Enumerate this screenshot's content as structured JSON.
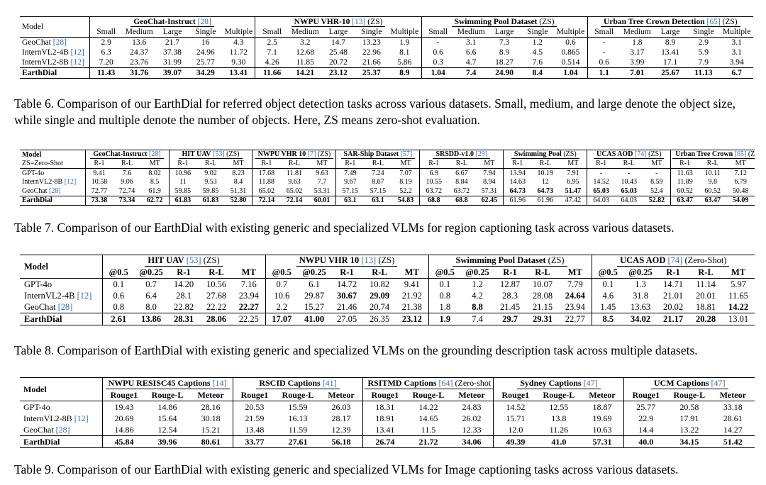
{
  "t6": {
    "model_header": "Model",
    "groups": [
      {
        "name": "GeoChat-Instruct",
        "cite": "[28]",
        "suffix": ""
      },
      {
        "name": "NWPU VHR-10",
        "cite": "[13]",
        "suffix": " (ZS)"
      },
      {
        "name": "Swimming Pool Dataset",
        "cite": "",
        "suffix": " (ZS)"
      },
      {
        "name": "Urban Tree Crown Detection",
        "cite": "[65]",
        "suffix": " (ZS)"
      }
    ],
    "sub": [
      "Small",
      "Medium",
      "Large",
      "Single",
      "Multiple"
    ],
    "rows": [
      {
        "model": "GeoChat ",
        "cite": "[28]",
        "vals": [
          "2.9",
          "13.6",
          "21.7",
          "16",
          "4.3",
          "2.5",
          "3.2",
          "14.7",
          "13.23",
          "1.9",
          "-",
          "3.1",
          "7.3",
          "1.2",
          "0.6",
          "-",
          "1.8",
          "8.9",
          "2.9",
          "3.1"
        ]
      },
      {
        "model": "InternVL2-4B ",
        "cite": "[12]",
        "vals": [
          "6.3",
          "24.37",
          "37.38",
          "24.96",
          "11.72",
          "7.1",
          "12.68",
          "25.48",
          "22.96",
          "8.1",
          "0.6",
          "6.6",
          "8.9",
          "4.5",
          "0.865",
          "-",
          "3.17",
          "13.41",
          "5.9",
          "3.1"
        ]
      },
      {
        "model": "InternVL2-8B ",
        "cite": "[12]",
        "vals": [
          "7.20",
          "23.76",
          "31.99",
          "25.77",
          "9.30",
          "4.26",
          "11.85",
          "20.72",
          "21.66",
          "5.86",
          "0.3",
          "4.7",
          "18.27",
          "7.6",
          "0.514",
          "0.6",
          "3.99",
          "17.1",
          "7.9",
          "3.94"
        ]
      }
    ],
    "final": {
      "model": "EarthDial",
      "vals": [
        "11.43",
        "31.76",
        "39.07",
        "34.29",
        "13.41",
        "11.66",
        "14.21",
        "23.12",
        "25.37",
        "8.9",
        "1.04",
        "7.4",
        "24.90",
        "8.4",
        "1.04",
        "1.1",
        "7.01",
        "25.67",
        "11.13",
        "6.7"
      ]
    },
    "caption": {
      "pre": "Table 6. ",
      "text": "Comparison of our EarthDial for referred object detection tasks across various datasets. Small, medium, and large denote the object size, while single and multiple denote the number of objects. Here, ZS means zero-shot evaluation."
    }
  },
  "t7": {
    "model_header": "Model",
    "zs_note": "ZS=Zero-Shot",
    "groups": [
      {
        "name": "GeoChat-Instruct",
        "cite": "[28]",
        "suffix": ""
      },
      {
        "name": "HIT UAV",
        "cite": "[53]",
        "suffix": " (ZS)"
      },
      {
        "name": "NWPU VHR 10",
        "cite": "[7]",
        "suffix": " (ZS)"
      },
      {
        "name": "SAR-Ship Dataset",
        "cite": "[57]",
        "suffix": ""
      },
      {
        "name": "SRSDD-v1.0",
        "cite": "[29]",
        "suffix": ""
      },
      {
        "name": "Swimming Pool",
        "cite": "",
        "suffix": " (ZS)"
      },
      {
        "name": "UCAS AOD",
        "cite": "[74]",
        "suffix": " (ZS)"
      },
      {
        "name": "Urban Tree Crown",
        "cite": "[65]",
        "suffix": " (ZS)"
      }
    ],
    "sub": [
      "R-1",
      "R-L",
      "MT"
    ],
    "rows": [
      {
        "model": "GPT-4o",
        "cite": "",
        "vals": [
          "9.41",
          "7.6",
          "8.02",
          "10.96",
          "9.02",
          "8.23",
          "17.68",
          "11.81",
          "9.63",
          "7.49",
          "7.24",
          "7.07",
          "6.9",
          "6.67",
          "7.94",
          "13.94",
          "10.19",
          "7.91",
          "-",
          "-",
          "-",
          "11.63",
          "10.11",
          "7.12"
        ]
      },
      {
        "model": "InternVL2-8B ",
        "cite": "[12]",
        "vals": [
          "10.58",
          "9.06",
          "8.5",
          "11",
          "9.53",
          "8.4",
          "11.88",
          "9.63",
          "7.7",
          "9.67",
          "8.67",
          "8.19",
          "10.55",
          "8.84",
          "8.94",
          "14.63",
          "12",
          "6.95",
          "14.52",
          "10.43",
          "8.59",
          "11.89",
          "9.8",
          "6.79"
        ]
      },
      {
        "model": "GeoChat ",
        "cite": "[28]",
        "vals": [
          "72.77",
          "72.74",
          "61.9",
          "59.85",
          "59.85",
          "51.31",
          "65.02",
          "65.02",
          "53.31",
          "57.15",
          "57.15",
          "52.2",
          "63.72",
          "63.72",
          "57.31",
          "64.73",
          "64.73",
          "51.47",
          "65.03",
          "65.03",
          "52.4",
          "60.52",
          "60.52",
          "50.48"
        ]
      }
    ],
    "final": {
      "model": "EarthDial",
      "vals": [
        "73.38",
        "73.34",
        "62.72",
        "61.83",
        "61.83",
        "52.80",
        "72.14",
        "72.14",
        "60.01",
        "63.1",
        "63.1",
        "54.83",
        "68.8",
        "68.8",
        "62.45",
        "61.96",
        "61.96",
        "47.42",
        "64.03",
        "64.03",
        "52.82",
        "63.47",
        "63.47",
        "54.09"
      ]
    },
    "caption": {
      "pre": "Table 7. ",
      "text": "Comparison of our EarthDial with existing generic and specialized VLMs for region captioning task across various datasets."
    }
  },
  "t8": {
    "model_header": "Model",
    "groups": [
      {
        "name": "HIT UAV",
        "cite": "[53]",
        "suffix": " (ZS)"
      },
      {
        "name": "NWPU VHR 10",
        "cite": "[13]",
        "suffix": " (ZS)"
      },
      {
        "name": "Swimming Pool Dataset",
        "cite": "",
        "suffix": " (ZS)"
      },
      {
        "name": "UCAS AOD",
        "cite": "[74]",
        "suffix": " (Zero-Shot)"
      }
    ],
    "sub": [
      "@0.5",
      "@0.25",
      "R-1",
      "R-L",
      "MT"
    ],
    "rows": [
      {
        "model": "GPT-4o",
        "cite": "",
        "vals": [
          "0.1",
          "0.7",
          "14.20",
          "10.56",
          "7.16",
          "0.7",
          "6.1",
          "14.72",
          "10.82",
          "9.41",
          "0.1",
          "1.2",
          "12.87",
          "10.07",
          "7.79",
          "0.1",
          "1.3",
          "14.71",
          "11.14",
          "5.97"
        ]
      },
      {
        "model": "InternVL2-4B ",
        "cite": "[12]",
        "vals": [
          "0.6",
          "6.4",
          "28.1",
          "27.68",
          "23.94",
          "10.6",
          "29.87",
          "30.67",
          "29.09",
          "21.92",
          "0.8",
          "4.2",
          "28.3",
          "28.08",
          "24.64",
          "4.6",
          "31.8",
          "21.01",
          "20.01",
          "11.65"
        ]
      },
      {
        "model": "GeoChat ",
        "cite": "[28]",
        "vals": [
          "0.8",
          "8.0",
          "22.82",
          "22.22",
          "22.27",
          "2.2",
          "15.27",
          "21.46",
          "20.74",
          "21.38",
          "1.8",
          "8.8",
          "21.45",
          "21.15",
          "23.94",
          "1.45",
          "13.63",
          "20.02",
          "18.81",
          "14.22"
        ]
      }
    ],
    "final": {
      "model": "EarthDial",
      "vals": [
        "2.61",
        "13.86",
        "28.31",
        "28.06",
        "22.25",
        "17.07",
        "41.00",
        "27.05",
        "26.35",
        "23.12",
        "1.9",
        "7.4",
        "29.7",
        "29.31",
        "22.77",
        "8.5",
        "34.02",
        "21.17",
        "20.28",
        "13.01"
      ]
    },
    "caption": {
      "pre": "Table 8. ",
      "text": "Comparison of EarthDial with existing generic and specialized VLMs on the grounding description task across multiple datasets."
    }
  },
  "t9": {
    "model_header": "Model",
    "groups": [
      {
        "name": "NWPU RESISC45 Captions",
        "cite": "[14]",
        "suffix": ""
      },
      {
        "name": "RSCID Captions",
        "cite": "[41]",
        "suffix": ""
      },
      {
        "name": "RSITMD Captions",
        "cite": "[64]",
        "suffix": " (Zero-shot eval)"
      },
      {
        "name": "Sydney Captions",
        "cite": "[47]",
        "suffix": ""
      },
      {
        "name": "UCM Captions",
        "cite": "[47]",
        "suffix": ""
      }
    ],
    "sub": [
      "Rouge1",
      "Rouge-L",
      "Meteor"
    ],
    "rows": [
      {
        "model": "GPT-4o",
        "cite": "",
        "vals": [
          "19.43",
          "14.86",
          "28.16",
          "20.53",
          "15.59",
          "26.03",
          "18.31",
          "14.22",
          "24.83",
          "14.52",
          "12.55",
          "18.87",
          "25.77",
          "20.58",
          "33.18"
        ]
      },
      {
        "model": "InternVL2-8B ",
        "cite": "[12]",
        "vals": [
          "20.69",
          "15.64",
          "30.18",
          "21.59",
          "16.13",
          "28.17",
          "18.91",
          "14.65",
          "26.02",
          "15.71",
          "13.8",
          "19.69",
          "22.9",
          "17.91",
          "28.61"
        ]
      },
      {
        "model": "GeoChat ",
        "cite": "[28]",
        "vals": [
          "14.86",
          "12.54",
          "15.21",
          "13.48",
          "11.59",
          "12.39",
          "13.41",
          "11.5",
          "12.33",
          "12.0",
          "11.26",
          "10.63",
          "14.4",
          "13.22",
          "14.27"
        ]
      }
    ],
    "final": {
      "model": "EarthDial",
      "vals": [
        "45.84",
        "39.96",
        "80.61",
        "33.77",
        "27.61",
        "56.18",
        "26.74",
        "21.72",
        "34.06",
        "49.39",
        "41.0",
        "57.31",
        "40.0",
        "34.15",
        "51.42"
      ]
    },
    "caption": {
      "pre": "Table 9. ",
      "text": "Comparison of our EarthDial with existing generic and specialized VLMs for Image captioning tasks across various datasets."
    }
  }
}
